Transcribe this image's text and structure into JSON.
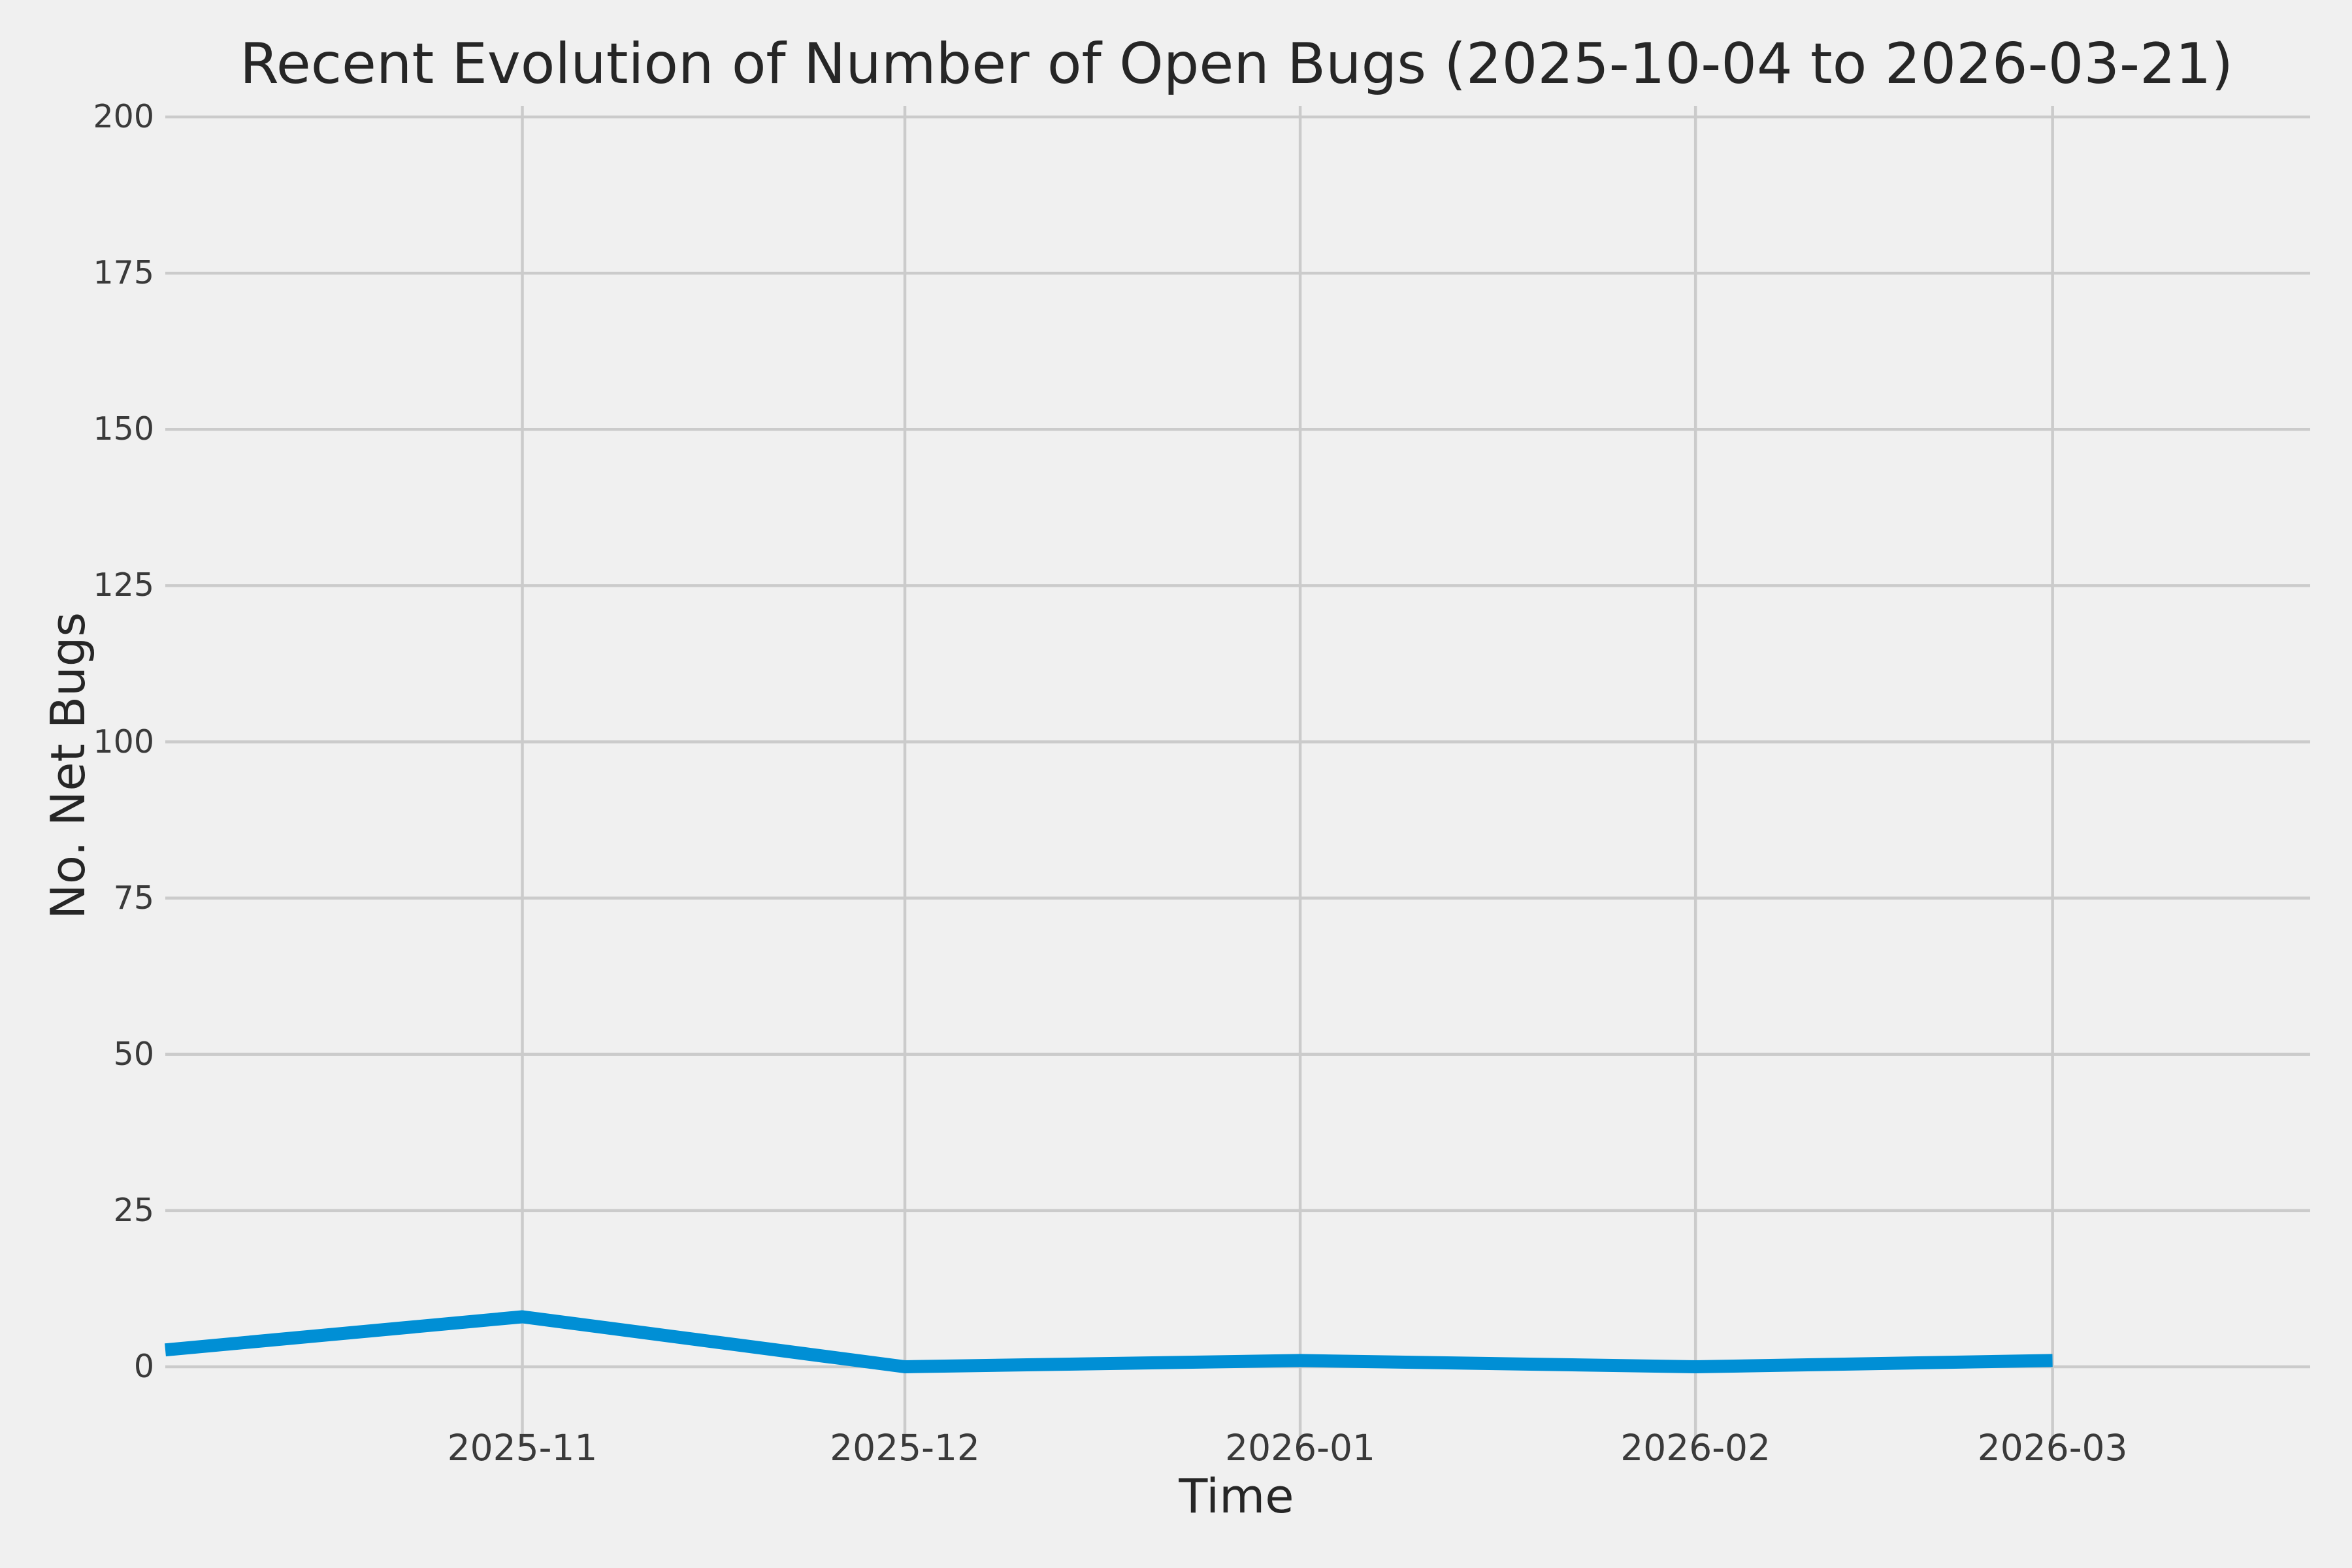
{
  "chart_data": {
    "type": "line",
    "title": "Recent Evolution of Number of Open Bugs (2025-10-04 to 2026-03-21)",
    "xlabel": "Time",
    "ylabel": "No. Net Bugs",
    "x_tick_labels": [
      "2025-11",
      "2025-12",
      "2026-01",
      "2026-02",
      "2026-03"
    ],
    "x_tick_day_offsets": [
      28,
      58,
      89,
      120,
      148
    ],
    "y_ticks": [
      0,
      25,
      50,
      75,
      100,
      125,
      150,
      175,
      200
    ],
    "y_axis_range_shown": [
      0,
      200
    ],
    "x_range_dates": [
      "2025-10-04",
      "2026-03-21"
    ],
    "x_range_days": [
      0,
      168
    ],
    "grid": true,
    "legend": false,
    "series": [
      {
        "name": "open-bugs-net",
        "color": "#008FD5",
        "points": [
          {
            "date": "2025-10-04",
            "day": 0,
            "value": 2.7
          },
          {
            "date": "2025-11-01",
            "day": 28,
            "value": 8
          },
          {
            "date": "2025-12-01",
            "day": 58,
            "value": 0
          },
          {
            "date": "2026-01-01",
            "day": 89,
            "value": 1
          },
          {
            "date": "2026-02-01",
            "day": 120,
            "value": 0
          },
          {
            "date": "2026-03-01",
            "day": 148,
            "value": 1
          }
        ],
        "note": "line enters at left plot edge and ends at the 2026-03 tick"
      }
    ],
    "colors": {
      "background": "#F0F0F0",
      "grid": "#CBCBCB",
      "line": "#008FD5",
      "title_text": "#262626",
      "tick_text": "#3a3a3a"
    }
  }
}
